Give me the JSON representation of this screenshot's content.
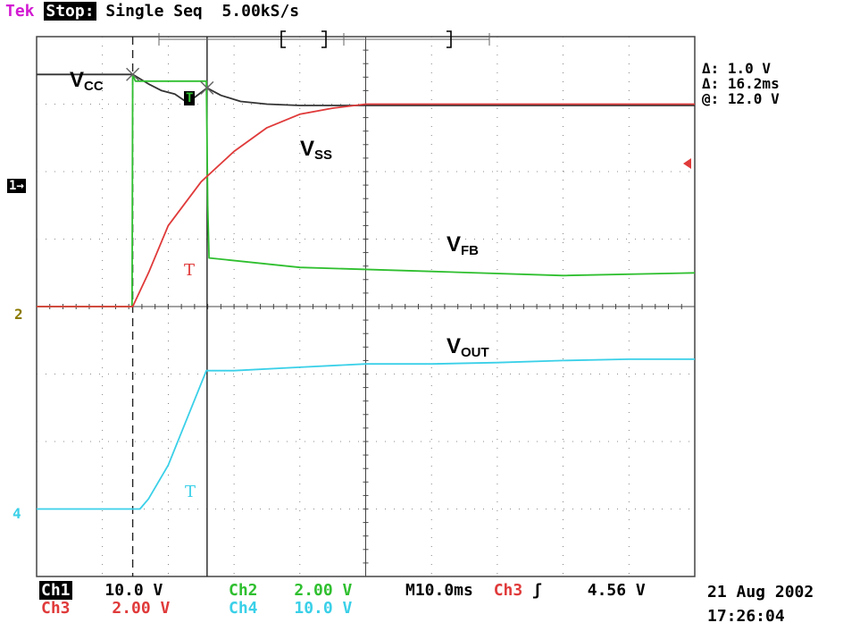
{
  "header": {
    "brand": "Tek",
    "status": "Stop:",
    "mode": "Single Seq",
    "rate": "5.00kS/s"
  },
  "cursor_readout": {
    "delta_v": "Δ: 1.0 V",
    "delta_t": "Δ: 16.2ms",
    "at_v": "@: 12.0 V"
  },
  "signal_labels": {
    "vcc": "V",
    "vcc_sub": "CC",
    "vss": "V",
    "vss_sub": "SS",
    "vfb": "V",
    "vfb_sub": "FB",
    "vout": "V",
    "vout_sub": "OUT"
  },
  "channel_markers": {
    "ch1": "1→",
    "ch2": "2",
    "ch4": "4",
    "trigger": "T"
  },
  "footer": {
    "ch1_label": "Ch1",
    "ch1_scale": "10.0 V",
    "ch2_label": "Ch2",
    "ch2_scale": "2.00 V",
    "ch3_label": "Ch3",
    "ch3_scale": "2.00 V",
    "ch4_label": "Ch4",
    "ch4_scale": "10.0 V",
    "timebase": "M10.0ms",
    "trig_source": "Ch3",
    "trig_slope": "ʃ",
    "trig_level": "4.56 V",
    "date": "21 Aug 2002",
    "time": "17:26:04"
  },
  "colors": {
    "ch1": "#333333",
    "ch2": "#2fbf2f",
    "ch3": "#e03a3a",
    "ch4": "#3ad0e8",
    "grid": "#555555",
    "brand": "#d21ad2"
  },
  "chart_data": {
    "type": "line",
    "grid": true,
    "x_divisions": 10,
    "y_divisions": 8,
    "x_units": "ms",
    "x_per_div": 10,
    "xlim": [
      0,
      100
    ],
    "ylim": [
      -4,
      4
    ],
    "cursor_x": [
      14.6,
      25.9
    ],
    "series": [
      {
        "name": "Ch1",
        "color": "#333333",
        "x": [
          0,
          14.6,
          17,
          19,
          21,
          22.5,
          24,
          25.9,
          28,
          31,
          35,
          40,
          50,
          100
        ],
        "y": [
          3.44,
          3.44,
          3.3,
          3.2,
          3.15,
          3.05,
          3.1,
          3.24,
          3.13,
          3.04,
          3.0,
          2.98,
          2.98,
          2.98
        ]
      },
      {
        "name": "Ch2",
        "color": "#2fbf2f",
        "x": [
          0,
          14.5,
          14.6,
          15,
          25.8,
          26.0,
          26.2,
          40,
          60,
          80,
          100
        ],
        "y": [
          0,
          0,
          3.44,
          3.34,
          3.34,
          1.5,
          0.72,
          0.58,
          0.52,
          0.46,
          0.5
        ],
        "dashed_segment": [
          14.5,
          14.6
        ]
      },
      {
        "name": "Ch3",
        "color": "#e03a3a",
        "x": [
          0,
          14.6,
          17,
          20,
          25,
          30,
          35,
          40,
          45,
          50,
          55,
          100
        ],
        "y": [
          0,
          0,
          0.5,
          1.2,
          1.85,
          2.3,
          2.65,
          2.85,
          2.94,
          3.0,
          3.0,
          3.0
        ]
      },
      {
        "name": "Ch4",
        "color": "#3ad0e8",
        "x": [
          0,
          15.7,
          17,
          20,
          25.8,
          30,
          40,
          50,
          60,
          70,
          80,
          90,
          100
        ],
        "y": [
          -3.0,
          -3.0,
          -2.85,
          -2.35,
          -0.95,
          -0.95,
          -0.9,
          -0.85,
          -0.85,
          -0.83,
          -0.8,
          -0.78,
          -0.78
        ]
      }
    ]
  }
}
